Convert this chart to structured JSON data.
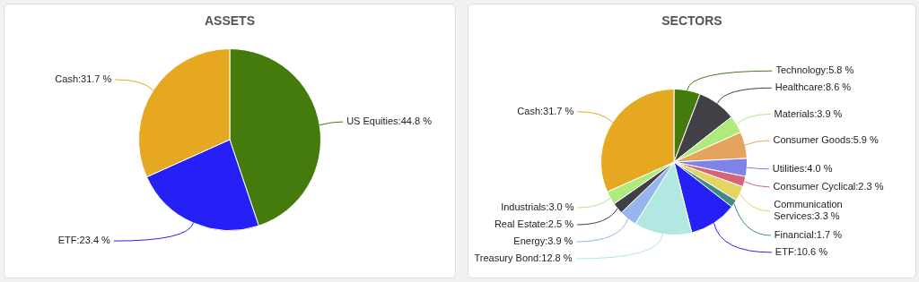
{
  "chart_data": [
    {
      "type": "pie",
      "title": "ASSETS",
      "categories": [
        "US Equities",
        "ETF",
        "Cash"
      ],
      "values": [
        44.8,
        23.4,
        31.7
      ],
      "colors": [
        "#457b0d",
        "#2520f5",
        "#e6a820"
      ],
      "value_labels": [
        "44.8 %",
        "23.4 %",
        "31.7 %"
      ]
    },
    {
      "type": "pie",
      "title": "SECTORS",
      "categories": [
        "Technology",
        "Healthcare",
        "Materials",
        "Consumer Goods",
        "Utilities",
        "Consumer Cyclical",
        "Communication Services",
        "Financial",
        "ETF",
        "Treasury Bond",
        "Energy",
        "Real Estate",
        "Industrials",
        "Cash"
      ],
      "values": [
        5.8,
        8.6,
        3.9,
        5.9,
        4.0,
        2.3,
        3.3,
        1.7,
        10.6,
        12.8,
        3.9,
        2.5,
        3.0,
        31.7
      ],
      "colors": [
        "#457b0d",
        "#414046",
        "#b1ea7c",
        "#e4a45e",
        "#7e83ea",
        "#d66479",
        "#e4d466",
        "#3f8a84",
        "#2520f5",
        "#b2e8e2",
        "#95b5ec",
        "#414046",
        "#b1ea7c",
        "#e6a820"
      ],
      "value_labels": [
        "5.8 %",
        "8.6 %",
        "3.9 %",
        "5.9 %",
        "4.0 %",
        "2.3 %",
        "3.3 %",
        "1.7 %",
        "10.6 %",
        "12.8 %",
        "3.9 %",
        "2.5 %",
        "3.0 %",
        "31.7 %"
      ]
    }
  ]
}
